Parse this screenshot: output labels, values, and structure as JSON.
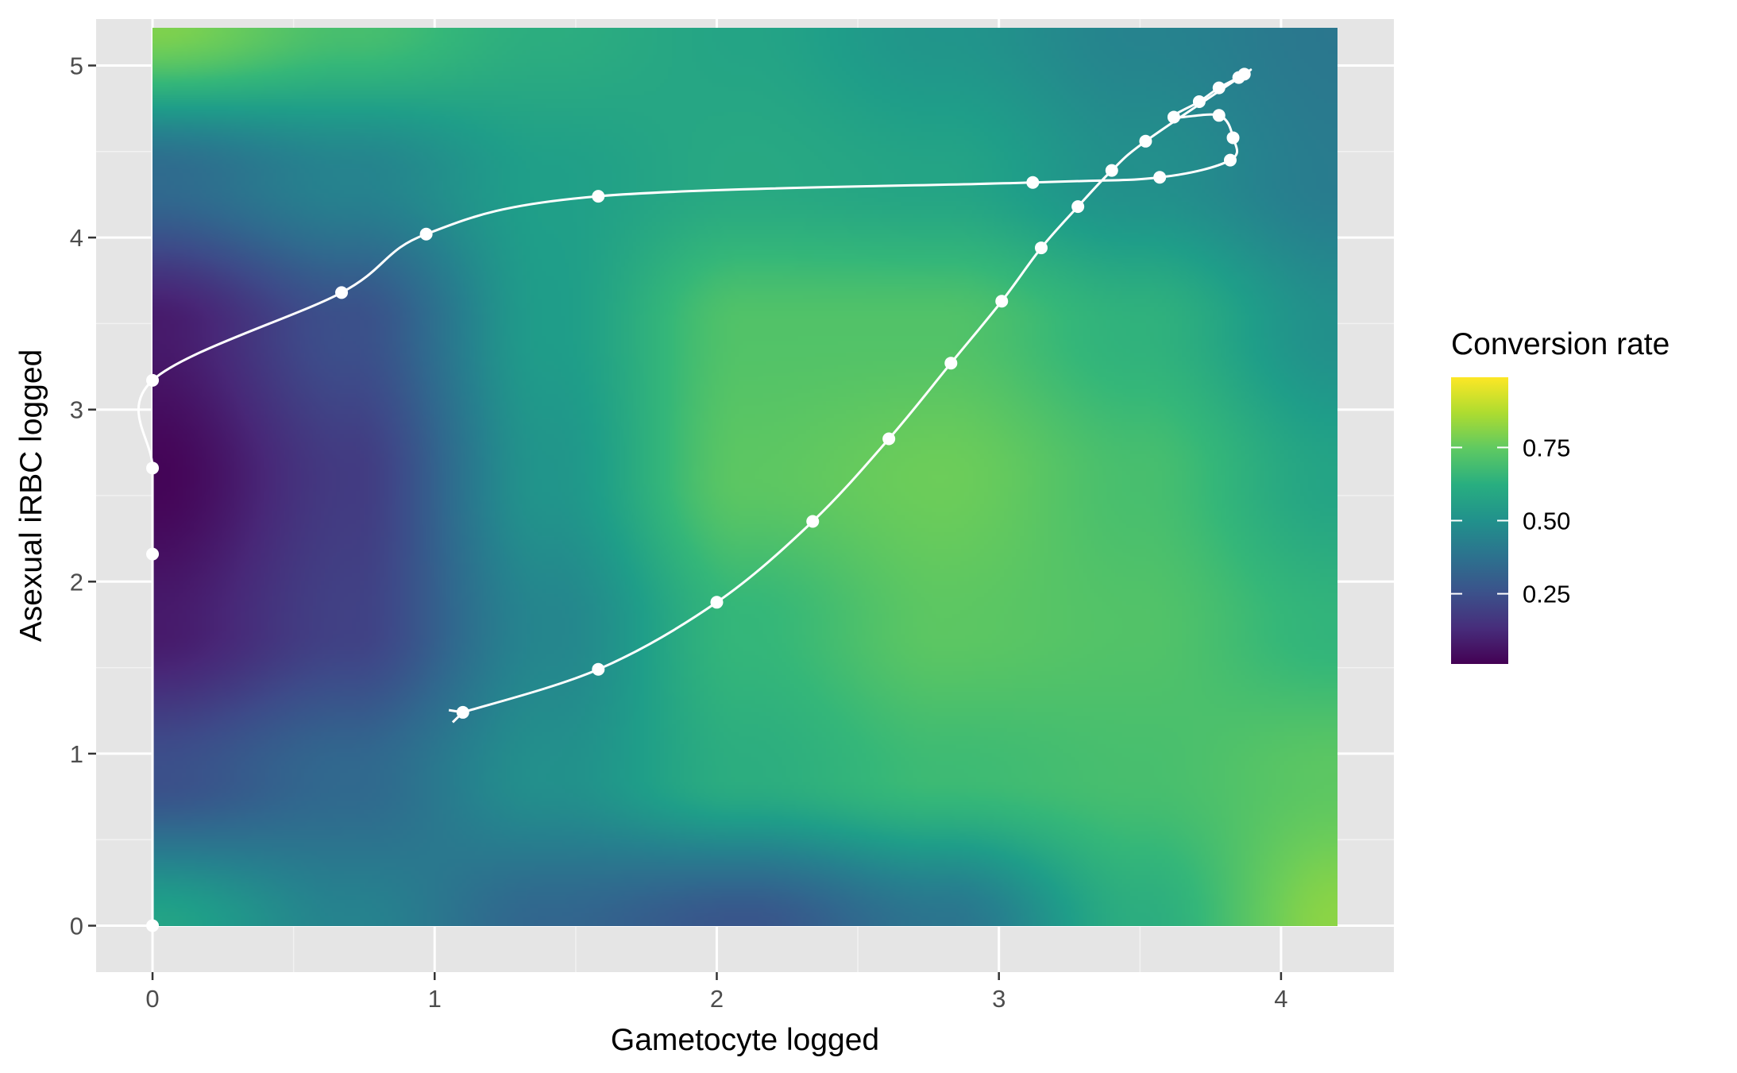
{
  "chart_data": {
    "type": "heatmap",
    "xlabel": "Gametocyte logged",
    "ylabel": "Asexual iRBC logged",
    "xlim": [
      -0.2,
      4.4
    ],
    "ylim": [
      -0.27,
      5.27
    ],
    "x_ticks": [
      0,
      1,
      2,
      3,
      4
    ],
    "y_ticks": [
      0,
      1,
      2,
      3,
      4,
      5
    ],
    "grid": true,
    "background": "#e5e5e5",
    "colorscale": "viridis",
    "heatmap_extent": {
      "x": [
        0,
        4.2
      ],
      "y": [
        0,
        5.22
      ]
    },
    "heatmap_values": {
      "x": [
        0,
        0.7,
        1.4,
        2.1,
        2.8,
        3.5,
        4.2
      ],
      "y": [
        0,
        0.87,
        1.74,
        2.61,
        3.48,
        4.35,
        5.22
      ],
      "z": [
        [
          0.58,
          0.45,
          0.33,
          0.27,
          0.39,
          0.62,
          0.82
        ],
        [
          0.25,
          0.34,
          0.5,
          0.62,
          0.68,
          0.7,
          0.74
        ],
        [
          0.08,
          0.2,
          0.46,
          0.66,
          0.74,
          0.72,
          0.65
        ],
        [
          0.02,
          0.18,
          0.52,
          0.74,
          0.77,
          0.7,
          0.58
        ],
        [
          0.08,
          0.25,
          0.55,
          0.72,
          0.72,
          0.64,
          0.5
        ],
        [
          0.35,
          0.45,
          0.56,
          0.6,
          0.58,
          0.5,
          0.42
        ],
        [
          0.8,
          0.7,
          0.62,
          0.58,
          0.52,
          0.45,
          0.4
        ]
      ]
    },
    "legend": {
      "title": "Conversion rate",
      "ticks": [
        0.25,
        0.5,
        0.75
      ],
      "tick_labels": [
        "0.25",
        "0.50",
        "0.75"
      ],
      "range": [
        0.01,
        0.99
      ],
      "placement": "right"
    },
    "trajectory": {
      "color": "#ffffff",
      "points": [
        [
          0,
          0
        ],
        [
          0,
          2.16
        ],
        [
          0,
          2.66
        ],
        [
          0,
          3.17
        ],
        [
          0.67,
          3.68
        ],
        [
          0.97,
          4.02
        ],
        [
          1.58,
          4.24
        ],
        [
          3.12,
          4.32
        ],
        [
          3.57,
          4.35
        ],
        [
          3.82,
          4.45
        ],
        [
          3.83,
          4.58
        ],
        [
          3.78,
          4.71
        ],
        [
          3.62,
          4.7
        ],
        [
          3.71,
          4.79
        ],
        [
          3.78,
          4.87
        ],
        [
          3.85,
          4.93
        ],
        [
          3.87,
          4.95
        ],
        [
          3.52,
          4.56
        ],
        [
          3.4,
          4.39
        ],
        [
          3.28,
          4.18
        ],
        [
          3.15,
          3.94
        ],
        [
          3.01,
          3.63
        ],
        [
          2.83,
          3.27
        ],
        [
          2.61,
          2.83
        ],
        [
          2.34,
          2.35
        ],
        [
          2.0,
          1.88
        ],
        [
          1.58,
          1.49
        ],
        [
          1.1,
          1.24
        ]
      ]
    }
  }
}
